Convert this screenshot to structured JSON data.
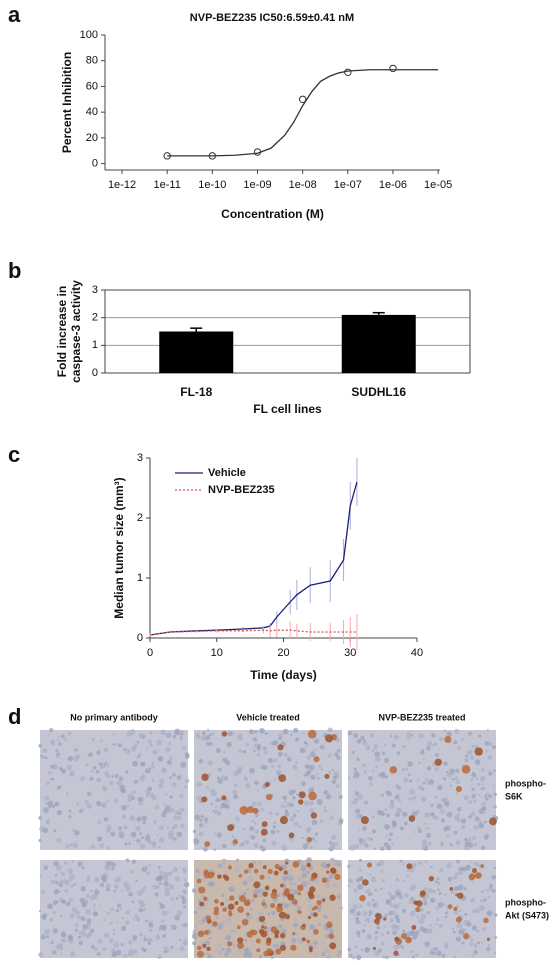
{
  "chart_data": [
    {
      "type": "scatter",
      "label": "a",
      "title": "NVP-BEZ235   IC50:6.59±0.41 nM",
      "xlabel": "Concentration (M)",
      "ylabel": "Percent Inhibition",
      "xscale": "log",
      "xlim": [
        4.2e-13,
        1.1e-05
      ],
      "ylim": [
        -5,
        100
      ],
      "xticks": [
        {
          "value": 1e-12,
          "label": "1e-12"
        },
        {
          "value": 1e-11,
          "label": "1e-11"
        },
        {
          "value": 1e-10,
          "label": "1e-10"
        },
        {
          "value": 1e-09,
          "label": "1e-09"
        },
        {
          "value": 1e-08,
          "label": "1e-08"
        },
        {
          "value": 1e-07,
          "label": "1e-07"
        },
        {
          "value": 1e-06,
          "label": "1e-06"
        },
        {
          "value": 1e-05,
          "label": "1e-05"
        }
      ],
      "yticks": [
        0,
        20,
        40,
        60,
        80,
        100
      ],
      "series": [
        {
          "style": "marker",
          "color": "#333333",
          "x": [
            1e-11,
            1e-10,
            1e-09,
            1e-08,
            1e-07,
            1e-06
          ],
          "values": [
            6,
            6,
            9,
            50,
            71,
            74
          ]
        },
        {
          "style": "line",
          "color": "#333333",
          "x": [
            1e-11,
            1e-10,
            3.16e-10,
            1e-09,
            2e-09,
            4e-09,
            6.3e-09,
            1e-08,
            1.6e-08,
            2.5e-08,
            4e-08,
            6.3e-08,
            1e-07,
            3.16e-07,
            1e-06,
            1e-05
          ],
          "values": [
            6,
            6,
            6.5,
            8,
            12,
            22,
            32,
            45,
            56,
            64,
            68,
            70.5,
            72,
            73,
            73,
            73
          ]
        }
      ]
    },
    {
      "type": "bar",
      "label": "b",
      "xlabel": "FL cell lines",
      "ylabel": [
        "Fold increase in",
        "caspase-3 activity"
      ],
      "categories": [
        "FL-18",
        "SUDHL16"
      ],
      "values": [
        1.5,
        2.1
      ],
      "errors": [
        0.12,
        0.08
      ],
      "color": "#000000",
      "ylim": [
        0,
        3
      ],
      "yticks": [
        0,
        1,
        2,
        3
      ],
      "grid": true
    },
    {
      "type": "line",
      "label": "c",
      "xlabel": "Time (days)",
      "ylabel": "Median tumor size (mm³)",
      "xlim": [
        0,
        40
      ],
      "ylim": [
        0,
        3
      ],
      "xticks": [
        0,
        10,
        20,
        30,
        40
      ],
      "yticks": [
        0,
        1,
        2,
        3
      ],
      "legend": "upper left",
      "series": [
        {
          "name": "Vehicle",
          "color": "#1f1f7a",
          "linestyle": "solid",
          "error_color": "#a8aed6",
          "x": [
            0,
            3,
            7,
            10,
            14,
            17,
            18,
            19,
            21,
            22,
            24,
            27,
            29,
            30,
            31
          ],
          "values": [
            0.05,
            0.1,
            0.12,
            0.13,
            0.15,
            0.17,
            0.2,
            0.35,
            0.6,
            0.72,
            0.88,
            0.95,
            1.3,
            2.2,
            2.6
          ],
          "errors": [
            0.02,
            0.02,
            0.02,
            0.02,
            0.03,
            0.03,
            0.05,
            0.1,
            0.2,
            0.25,
            0.3,
            0.35,
            0.35,
            0.4,
            0.4
          ]
        },
        {
          "name": "NVP-BEZ235",
          "color": "#d9534f",
          "linestyle": "dotted",
          "error_color": "#f2aaaa",
          "x": [
            0,
            3,
            7,
            10,
            14,
            17,
            18,
            19,
            21,
            22,
            24,
            27,
            29,
            30,
            31
          ],
          "values": [
            0.05,
            0.1,
            0.11,
            0.12,
            0.12,
            0.13,
            0.12,
            0.13,
            0.13,
            0.12,
            0.1,
            0.1,
            0.1,
            0.1,
            0.1
          ],
          "errors": [
            0.02,
            0.02,
            0.02,
            0.03,
            0.03,
            0.05,
            0.1,
            0.12,
            0.15,
            0.12,
            0.15,
            0.15,
            0.2,
            0.25,
            0.3
          ]
        }
      ]
    }
  ],
  "figure_d": {
    "label": "d",
    "columns": [
      "No primary antibody",
      "Vehicle treated",
      "NVP-BEZ235 treated"
    ],
    "rows": [
      [
        "phospho-",
        "S6K"
      ],
      [
        "phospho-",
        "Akt (S473)"
      ]
    ]
  }
}
